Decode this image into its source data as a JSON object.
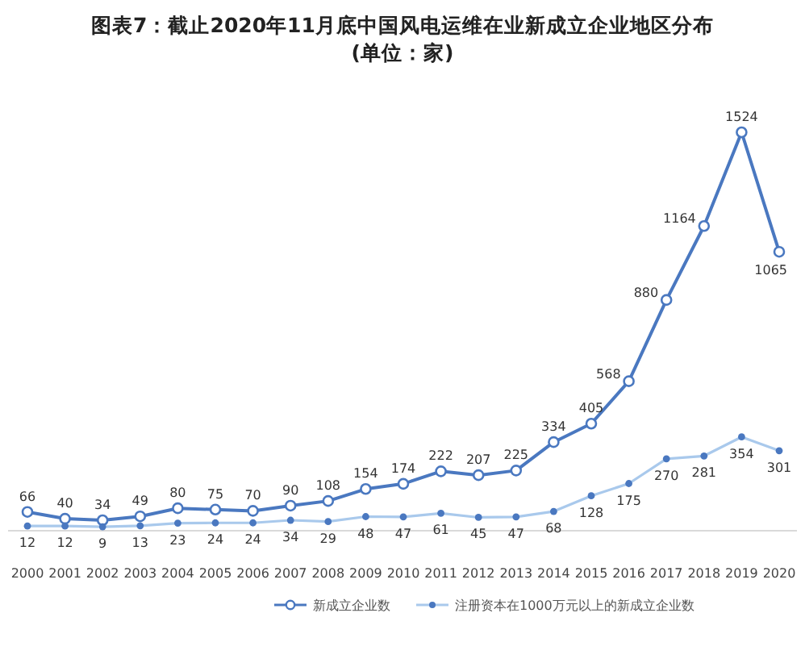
{
  "chart_data": {
    "type": "line",
    "title": "图表7：截止2020年11月底中国风电运维在业新成立企业地区分布 (单位：家)",
    "categories": [
      "2000",
      "2001",
      "2002",
      "2003",
      "2004",
      "2005",
      "2006",
      "2007",
      "2008",
      "2009",
      "2010",
      "2011",
      "2012",
      "2013",
      "2014",
      "2015",
      "2016",
      "2017",
      "2018",
      "2019",
      "2020"
    ],
    "series": [
      {
        "name": "新成立企业数",
        "color": "#4a78c0",
        "values": [
          66,
          40,
          34,
          49,
          80,
          75,
          70,
          90,
          108,
          154,
          174,
          222,
          207,
          225,
          334,
          405,
          568,
          880,
          1164,
          1524,
          1065
        ]
      },
      {
        "name": "注册资本在1000万元以上的新成立企业数",
        "color": "#a9c9ec",
        "values": [
          12,
          12,
          9,
          13,
          23,
          24,
          24,
          34,
          29,
          48,
          47,
          61,
          45,
          47,
          68,
          128,
          175,
          270,
          281,
          354,
          301
        ]
      }
    ],
    "data_labels": true,
    "marker": "circle",
    "legend": "bottom"
  }
}
